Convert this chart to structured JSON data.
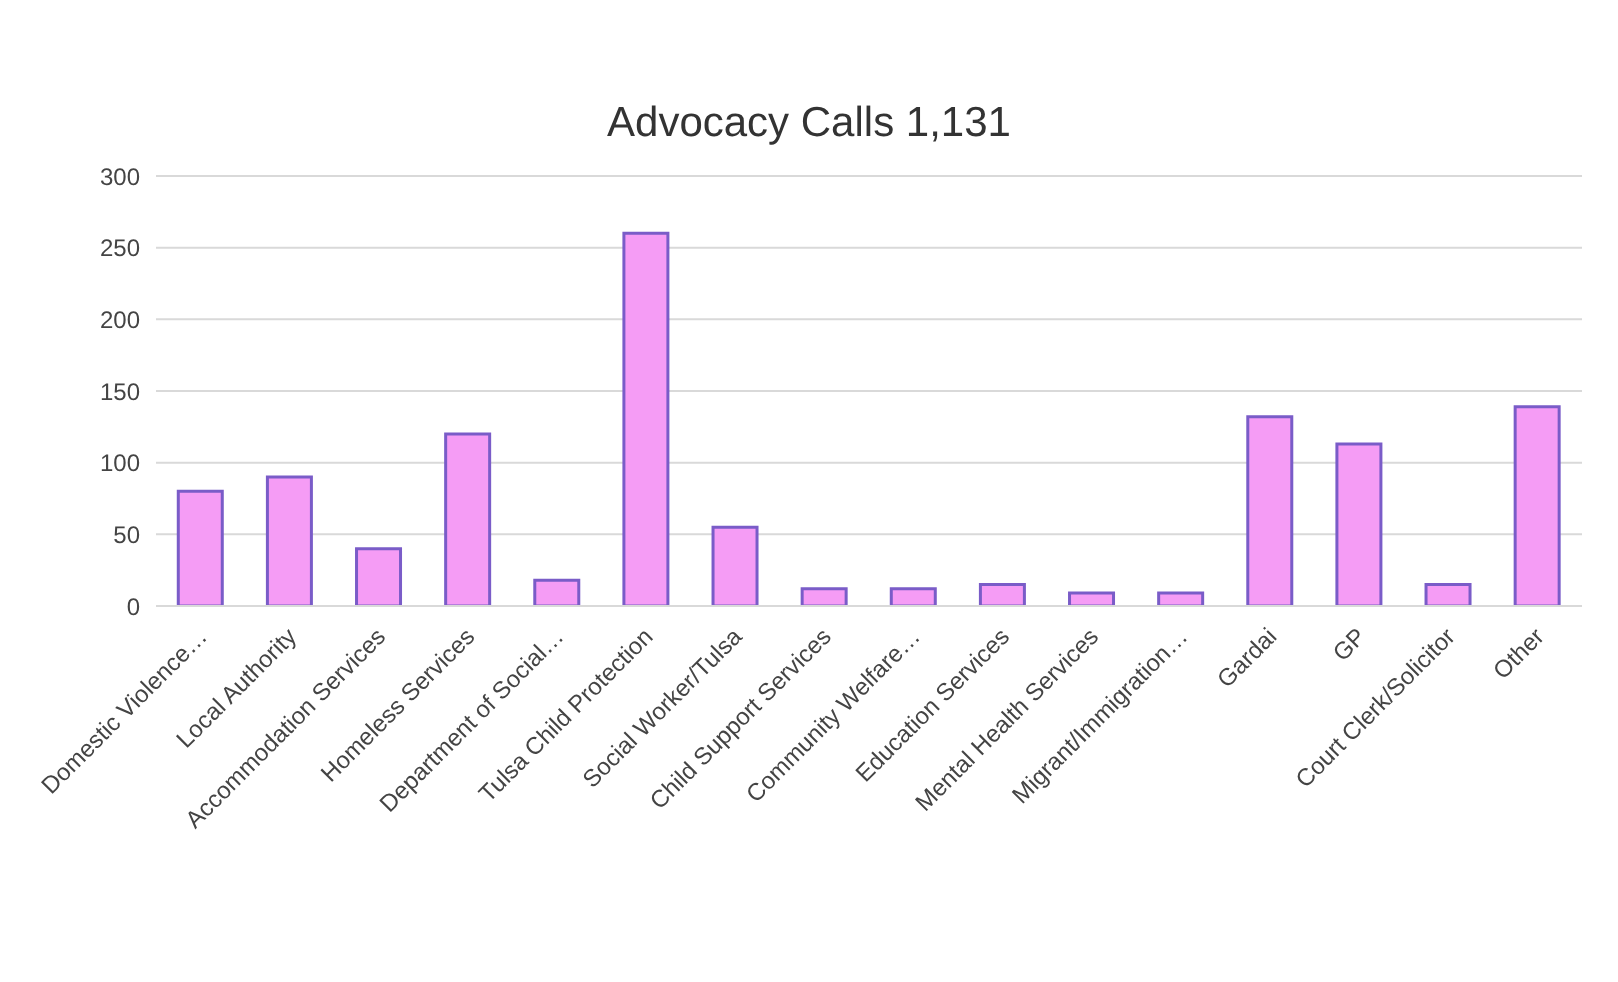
{
  "chart_data": {
    "type": "bar",
    "title": "Advocacy Calls 1,131",
    "categories": [
      "Domestic Violence…",
      "Local Authority",
      "Accommodation Services",
      "Homeless Services",
      "Department of Social…",
      "Tulsa Child Protection",
      "Social Worker/Tulsa",
      "Child Support Services",
      "Community Welfare…",
      "Education Services",
      "Mental Health Services",
      "Migrant/Immigration…",
      "Gardai",
      "GP",
      "Court Clerk/Solicitor",
      "Other"
    ],
    "values": [
      80,
      90,
      40,
      120,
      18,
      260,
      55,
      12,
      12,
      15,
      9,
      9,
      132,
      113,
      15,
      139
    ],
    "color": "#f59cf5",
    "ylim": [
      0,
      300
    ],
    "yticks": [
      0,
      50,
      100,
      150,
      200,
      250,
      300
    ],
    "grid": "y"
  }
}
